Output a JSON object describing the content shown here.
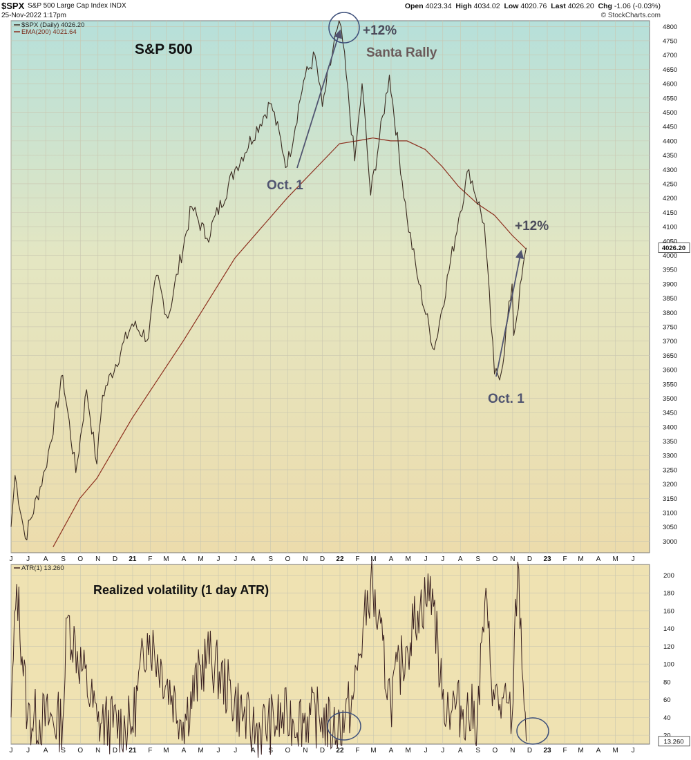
{
  "header": {
    "symbol": "$SPX",
    "description": "S&P 500 Large Cap Index INDX",
    "datetime": "25-Nov-2022 1:17pm",
    "open_label": "Open",
    "open": "4023.34",
    "high_label": "High",
    "high": "4034.02",
    "low_label": "Low",
    "low": "4020.76",
    "last_label": "Last",
    "last": "4026.20",
    "chg_label": "Chg",
    "chg": "-1.06 (-0.03%)",
    "brand": "© StockCharts.com"
  },
  "colors": {
    "price_line": "#3a2a20",
    "ema_line": "#8c2f1e",
    "atr_line": "#3a2020",
    "annotation": "#505470",
    "circle": "#3d4f7a",
    "panel_top": "#b6e0da",
    "panel_bottom": "#ecdcac"
  },
  "chart_data": [
    {
      "type": "line",
      "title": "S&P 500",
      "legend_placement": "top-left",
      "legend": [
        "$SPX (Daily) 4026.20",
        "EMA(200) 4021.64"
      ],
      "ylim": [
        2960,
        4820
      ],
      "y_scale": "linear",
      "grid": true,
      "x_tick_labels": [
        "J",
        "J",
        "A",
        "S",
        "O",
        "N",
        "D",
        "21",
        "F",
        "M",
        "A",
        "M",
        "J",
        "J",
        "A",
        "S",
        "O",
        "N",
        "D",
        "22",
        "F",
        "M",
        "A",
        "M",
        "J",
        "J",
        "A",
        "S",
        "O",
        "N",
        "D",
        "23",
        "F",
        "M",
        "A",
        "M",
        "J"
      ],
      "x_range": [
        "2020-06-01",
        "2023-06-30"
      ],
      "y_tick_labels": [
        "3000",
        "3050",
        "3100",
        "3150",
        "3200",
        "3250",
        "3300",
        "3350",
        "3400",
        "3450",
        "3500",
        "3550",
        "3600",
        "3650",
        "3700",
        "3750",
        "3800",
        "3850",
        "3900",
        "3950",
        "4000",
        "4050",
        "4100",
        "4150",
        "4200",
        "4250",
        "4300",
        "4350",
        "4400",
        "4450",
        "4500",
        "4550",
        "4600",
        "4650",
        "4700",
        "4750",
        "4800"
      ],
      "last_value_tag": "4026.20",
      "series": [
        {
          "name": "$SPX (Daily) 4026.20",
          "x": [
            "2020-06-01",
            "2020-06-08",
            "2020-06-26",
            "2020-07-31",
            "2020-08-31",
            "2020-09-23",
            "2020-10-12",
            "2020-10-30",
            "2020-11-09",
            "2020-12-31",
            "2021-01-29",
            "2021-02-12",
            "2021-03-04",
            "2021-04-15",
            "2021-05-12",
            "2021-06-30",
            "2021-08-31",
            "2021-09-02",
            "2021-09-30",
            "2021-10-29",
            "2021-11-18",
            "2021-12-01",
            "2021-12-27",
            "2022-01-03",
            "2022-01-27",
            "2022-02-09",
            "2022-02-24",
            "2022-03-29",
            "2022-04-29",
            "2022-05-20",
            "2022-06-16",
            "2022-07-29",
            "2022-08-16",
            "2022-09-12",
            "2022-09-30",
            "2022-10-12",
            "2022-10-31",
            "2022-11-03",
            "2022-11-25"
          ],
          "values": [
            3050,
            3230,
            3010,
            3250,
            3580,
            3240,
            3530,
            3270,
            3510,
            3760,
            3710,
            3930,
            3780,
            4170,
            4060,
            4300,
            4530,
            4530,
            4310,
            4610,
            4700,
            4520,
            4790,
            4800,
            4330,
            4600,
            4210,
            4630,
            4130,
            3900,
            3670,
            4130,
            4300,
            4110,
            3585,
            3590,
            3900,
            3720,
            4026
          ]
        },
        {
          "name": "EMA(200) 4021.64",
          "x": [
            "2020-08-14",
            "2020-09-30",
            "2020-10-30",
            "2020-12-31",
            "2021-03-31",
            "2021-06-30",
            "2021-09-30",
            "2021-12-31",
            "2022-01-31",
            "2022-02-28",
            "2022-03-31",
            "2022-04-29",
            "2022-05-31",
            "2022-06-30",
            "2022-07-29",
            "2022-08-31",
            "2022-09-30",
            "2022-10-31",
            "2022-11-25"
          ],
          "values": [
            2980,
            3150,
            3220,
            3430,
            3700,
            3990,
            4200,
            4390,
            4400,
            4410,
            4400,
            4400,
            4370,
            4310,
            4240,
            4180,
            4140,
            4070,
            4021.64
          ]
        }
      ],
      "annotations": [
        {
          "text": "S&P 500"
        },
        {
          "text": "+12%"
        },
        {
          "text": "Santa Rally"
        },
        {
          "text": "Oct. 1"
        },
        {
          "text": "+12%"
        },
        {
          "text": "Oct. 1"
        }
      ]
    },
    {
      "type": "line",
      "title": "Realized volatility (1 day ATR)",
      "legend_placement": "top-left",
      "legend": [
        "ATR(1) 13.260"
      ],
      "ylim": [
        10,
        212
      ],
      "grid": true,
      "x_tick_labels": [
        "J",
        "J",
        "A",
        "S",
        "O",
        "N",
        "D",
        "21",
        "F",
        "M",
        "A",
        "M",
        "J",
        "J",
        "A",
        "S",
        "O",
        "N",
        "D",
        "22",
        "F",
        "M",
        "A",
        "M",
        "J",
        "J",
        "A",
        "S",
        "O",
        "N",
        "D",
        "23",
        "F",
        "M",
        "A",
        "M",
        "J"
      ],
      "y_tick_labels": [
        "20",
        "40",
        "60",
        "80",
        "100",
        "120",
        "140",
        "160",
        "180",
        "200"
      ],
      "last_value_tag": "13.260",
      "series": [
        {
          "name": "ATR(1) 13.260",
          "x": [
            "2020-06-01",
            "2020-06-11",
            "2020-06-30",
            "2020-08-31",
            "2020-09-08",
            "2020-10-31",
            "2020-12-31",
            "2021-01-27",
            "2021-03-31",
            "2021-05-12",
            "2021-07-31",
            "2021-09-30",
            "2021-11-30",
            "2021-12-20",
            "2022-01-10",
            "2022-01-24",
            "2022-02-24",
            "2022-03-31",
            "2022-04-29",
            "2022-05-18",
            "2022-06-13",
            "2022-06-30",
            "2022-08-31",
            "2022-09-13",
            "2022-09-30",
            "2022-10-31",
            "2022-11-10",
            "2022-11-25"
          ],
          "values": [
            40,
            190,
            40,
            35,
            152,
            35,
            30,
            135,
            35,
            112,
            25,
            40,
            40,
            25,
            40,
            60,
            193,
            60,
            120,
            160,
            185,
            60,
            40,
            170,
            60,
            40,
            215,
            13.26
          ]
        }
      ],
      "annotations": [
        {
          "text": "Realized volatility (1 day ATR)"
        }
      ]
    }
  ]
}
